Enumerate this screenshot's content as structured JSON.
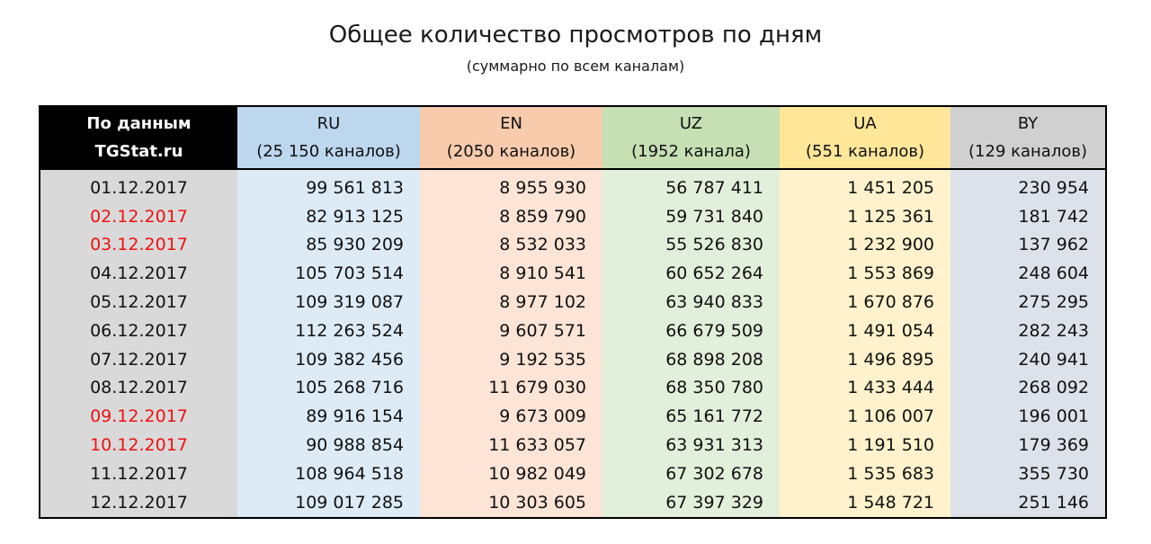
{
  "chart_data": {
    "type": "table",
    "title": "Общее количество просмотров по дням",
    "subtitle": "(суммарно по всем каналам)",
    "header": {
      "corner_line1": "По данным",
      "corner_line2": "TGStat.ru",
      "columns": [
        {
          "name": "RU",
          "sub": "(25 150 каналов)"
        },
        {
          "name": "EN",
          "sub": "(2050 каналов)"
        },
        {
          "name": "UZ",
          "sub": "(1952 канала)"
        },
        {
          "name": "UA",
          "sub": "(551 каналов)"
        },
        {
          "name": "BY",
          "sub": "(129 каналов)"
        }
      ]
    },
    "rows": [
      {
        "date": "01.12.2017",
        "weekend": false,
        "values": [
          "99 561 813",
          "8 955 930",
          "56 787 411",
          "1 451 205",
          "230 954"
        ]
      },
      {
        "date": "02.12.2017",
        "weekend": true,
        "values": [
          "82 913 125",
          "8 859 790",
          "59 731 840",
          "1 125 361",
          "181 742"
        ]
      },
      {
        "date": "03.12.2017",
        "weekend": true,
        "values": [
          "85 930 209",
          "8 532 033",
          "55 526 830",
          "1 232 900",
          "137 962"
        ]
      },
      {
        "date": "04.12.2017",
        "weekend": false,
        "values": [
          "105 703 514",
          "8 910 541",
          "60 652 264",
          "1 553 869",
          "248 604"
        ]
      },
      {
        "date": "05.12.2017",
        "weekend": false,
        "values": [
          "109 319 087",
          "8 977 102",
          "63 940 833",
          "1 670 876",
          "275 295"
        ]
      },
      {
        "date": "06.12.2017",
        "weekend": false,
        "values": [
          "112 263 524",
          "9 607 571",
          "66 679 509",
          "1 491 054",
          "282 243"
        ]
      },
      {
        "date": "07.12.2017",
        "weekend": false,
        "values": [
          "109 382 456",
          "9 192 535",
          "68 898 208",
          "1 496 895",
          "240 941"
        ]
      },
      {
        "date": "08.12.2017",
        "weekend": false,
        "values": [
          "105 268 716",
          "11 679 030",
          "68 350 780",
          "1 433 444",
          "268 092"
        ]
      },
      {
        "date": "09.12.2017",
        "weekend": true,
        "values": [
          "89 916 154",
          "9 673 009",
          "65 161 772",
          "1 106 007",
          "196 001"
        ]
      },
      {
        "date": "10.12.2017",
        "weekend": true,
        "values": [
          "90 988 854",
          "11 633 057",
          "63 931 313",
          "1 191 510",
          "179 369"
        ]
      },
      {
        "date": "11.12.2017",
        "weekend": false,
        "values": [
          "108 964 518",
          "10 982 049",
          "67 302 678",
          "1 535 683",
          "355 730"
        ]
      },
      {
        "date": "12.12.2017",
        "weekend": false,
        "values": [
          "109 017 285",
          "10 303 605",
          "67 397 329",
          "1 548 721",
          "251 146"
        ]
      }
    ],
    "colors": {
      "corner": "#000000",
      "ru": "#bdd7ee",
      "en": "#f8cbad",
      "uz": "#c6e0b4",
      "ua": "#ffe699",
      "by": "#d0d0d0",
      "weekend_text": "#ee1111"
    }
  }
}
